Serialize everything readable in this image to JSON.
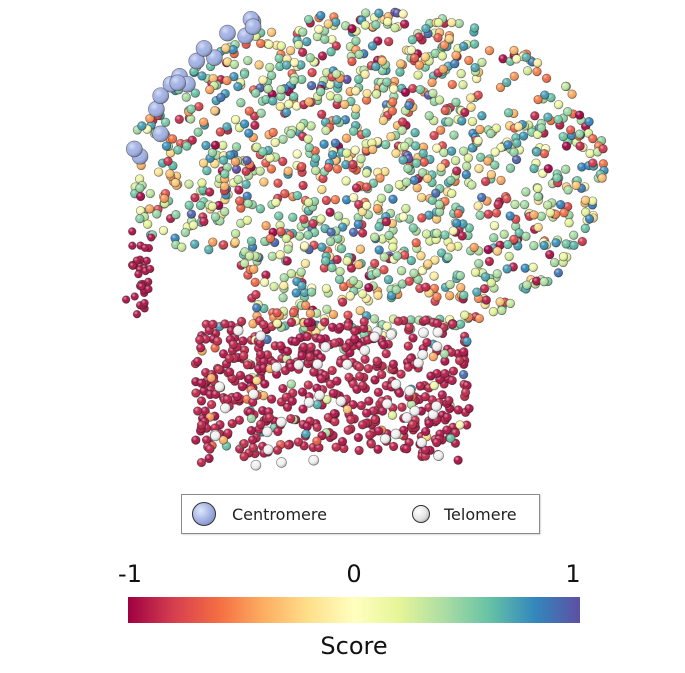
{
  "chart_data": {
    "type": "scatter",
    "title": "",
    "legend": {
      "placement": "bottom",
      "entries": [
        {
          "name": "Centromere",
          "marker": "large periwinkle sphere",
          "color": "#9fb0e4"
        },
        {
          "name": "Telomere",
          "marker": "small white sphere",
          "color": "#f0f0f0"
        }
      ]
    },
    "colorbar": {
      "label": "Score",
      "min": -1,
      "max": 1,
      "ticks": [
        "-1",
        "0",
        "1"
      ],
      "colormap": "Spectral",
      "colors": [
        "#9e0142",
        "#d53e4f",
        "#f46d43",
        "#fdae61",
        "#fee08b",
        "#ffffbf",
        "#e6f598",
        "#abdda4",
        "#66c2a5",
        "#3288bd",
        "#5e4fa2"
      ]
    }
  }
}
